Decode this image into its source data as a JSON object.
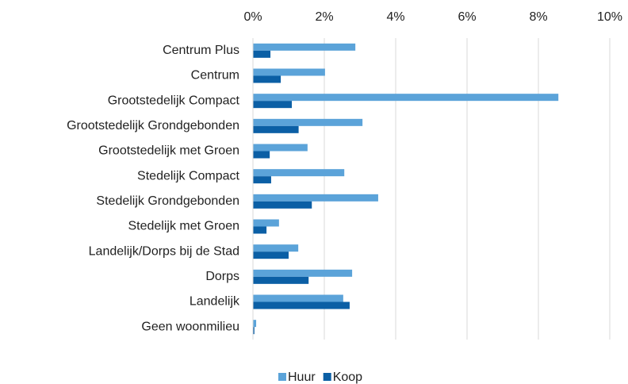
{
  "chart_data": {
    "type": "hbar",
    "categories": [
      "Centrum Plus",
      "Centrum",
      "Grootstedelijk Compact",
      "Grootstedelijk Grondgebonden",
      "Grootstedelijk met Groen",
      "Stedelijk Compact",
      "Stedelijk Grondgebonden",
      "Stedelijk met Groen",
      "Landelijk/Dorps bij de Stad",
      "Dorps",
      "Landelijk",
      "Geen woonmilieu"
    ],
    "series": [
      {
        "name": "Huur",
        "color": "#5ba3d9",
        "values": [
          2.87,
          2.02,
          8.56,
          3.07,
          1.53,
          2.56,
          3.51,
          0.73,
          1.27,
          2.78,
          2.53,
          0.09
        ]
      },
      {
        "name": "Koop",
        "color": "#0b5fa5",
        "values": [
          0.49,
          0.78,
          1.09,
          1.28,
          0.47,
          0.51,
          1.65,
          0.38,
          1.0,
          1.56,
          2.71,
          0.04
        ]
      }
    ],
    "xlim": [
      0,
      10
    ],
    "xticks": [
      {
        "value": 0,
        "label": "0%"
      },
      {
        "value": 2,
        "label": "2%"
      },
      {
        "value": 4,
        "label": "4%"
      },
      {
        "value": 6,
        "label": "6%"
      },
      {
        "value": 8,
        "label": "8%"
      },
      {
        "value": 10,
        "label": "10%"
      }
    ],
    "grid": true,
    "legend": "bottom"
  }
}
